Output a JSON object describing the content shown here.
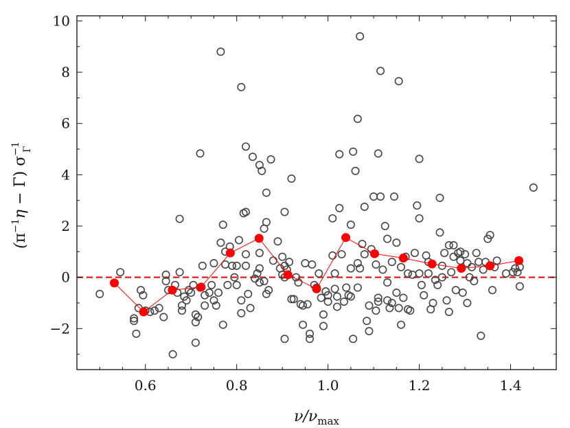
{
  "chart_data": {
    "type": "scatter",
    "title": "",
    "xlabel": "ν/ν_max",
    "ylabel": "(π⁻¹η − Γ) σ_Γ⁻¹",
    "xlim": [
      0.45,
      1.5
    ],
    "ylim": [
      -3.6,
      10.2
    ],
    "x_ticks": [
      0.6,
      0.8,
      1.0,
      1.2,
      1.4
    ],
    "x_tick_labels": [
      "0.6",
      "0.8",
      "1.0",
      "1.2",
      "1.4"
    ],
    "y_ticks": [
      -2,
      0,
      2,
      4,
      6,
      8,
      10
    ],
    "y_tick_labels": [
      "−2",
      "0",
      "2",
      "4",
      "6",
      "8",
      "10"
    ],
    "grid": false,
    "legend": "none",
    "reference_line": {
      "y": 0,
      "style": "dashed",
      "color": "#e41a1c"
    },
    "colors": {
      "points": "#444444",
      "binned": "#ff0000"
    },
    "series": [
      {
        "kind": "open-circles",
        "points": [
          [
            0.5,
            -0.65
          ],
          [
            0.545,
            0.2
          ],
          [
            0.575,
            -1.6
          ],
          [
            0.575,
            -1.7
          ],
          [
            0.58,
            -2.2
          ],
          [
            0.585,
            -1.2
          ],
          [
            0.59,
            -0.5
          ],
          [
            0.595,
            -0.7
          ],
          [
            0.6,
            -1.3
          ],
          [
            0.61,
            -1.35
          ],
          [
            0.62,
            -1.3
          ],
          [
            0.63,
            -1.2
          ],
          [
            0.64,
            -1.55
          ],
          [
            0.645,
            0.1
          ],
          [
            0.645,
            -0.15
          ],
          [
            0.65,
            -0.5
          ],
          [
            0.66,
            -3.0
          ],
          [
            0.665,
            -0.3
          ],
          [
            0.67,
            -0.6
          ],
          [
            0.675,
            0.2
          ],
          [
            0.675,
            2.28
          ],
          [
            0.68,
            -1.1
          ],
          [
            0.68,
            -1.3
          ],
          [
            0.685,
            -0.75
          ],
          [
            0.69,
            -0.9
          ],
          [
            0.695,
            -0.5
          ],
          [
            0.7,
            -0.6
          ],
          [
            0.705,
            -0.3
          ],
          [
            0.71,
            -1.45
          ],
          [
            0.71,
            -1.75
          ],
          [
            0.71,
            -2.55
          ],
          [
            0.715,
            -1.55
          ],
          [
            0.72,
            4.83
          ],
          [
            0.72,
            -0.4
          ],
          [
            0.725,
            0.45
          ],
          [
            0.73,
            -0.7
          ],
          [
            0.73,
            -1.1
          ],
          [
            0.74,
            -0.6
          ],
          [
            0.745,
            -0.3
          ],
          [
            0.75,
            0.55
          ],
          [
            0.75,
            -0.9
          ],
          [
            0.755,
            -1.1
          ],
          [
            0.76,
            -0.6
          ],
          [
            0.765,
            8.8
          ],
          [
            0.765,
            1.35
          ],
          [
            0.77,
            2.05
          ],
          [
            0.77,
            -1.85
          ],
          [
            0.775,
            1.0
          ],
          [
            0.775,
            0.5
          ],
          [
            0.78,
            -0.3
          ],
          [
            0.785,
            1.2
          ],
          [
            0.79,
            0.45
          ],
          [
            0.795,
            0.0
          ],
          [
            0.8,
            -0.3
          ],
          [
            0.8,
            0.45
          ],
          [
            0.805,
            1.45
          ],
          [
            0.81,
            7.42
          ],
          [
            0.81,
            -0.9
          ],
          [
            0.81,
            -1.4
          ],
          [
            0.815,
            2.5
          ],
          [
            0.82,
            5.1
          ],
          [
            0.82,
            2.55
          ],
          [
            0.82,
            0.9
          ],
          [
            0.82,
            0.45
          ],
          [
            0.825,
            -0.65
          ],
          [
            0.83,
            -1.2
          ],
          [
            0.835,
            4.7
          ],
          [
            0.84,
            -0.05
          ],
          [
            0.845,
            0.15
          ],
          [
            0.85,
            4.38
          ],
          [
            0.85,
            0.95
          ],
          [
            0.85,
            0.35
          ],
          [
            0.85,
            -0.2
          ],
          [
            0.855,
            4.15
          ],
          [
            0.86,
            1.9
          ],
          [
            0.86,
            -0.15
          ],
          [
            0.865,
            3.3
          ],
          [
            0.865,
            2.15
          ],
          [
            0.865,
            -0.65
          ],
          [
            0.87,
            -0.5
          ],
          [
            0.875,
            4.6
          ],
          [
            0.88,
            0.65
          ],
          [
            0.89,
            1.4
          ],
          [
            0.895,
            0.35
          ],
          [
            0.9,
            0.8
          ],
          [
            0.9,
            0.1
          ],
          [
            0.905,
            2.55
          ],
          [
            0.905,
            0.45
          ],
          [
            0.905,
            0.0
          ],
          [
            0.905,
            -2.4
          ],
          [
            0.91,
            0.3
          ],
          [
            0.915,
            0.6
          ],
          [
            0.92,
            3.85
          ],
          [
            0.92,
            -0.85
          ],
          [
            0.925,
            -0.85
          ],
          [
            0.93,
            0.0
          ],
          [
            0.935,
            -0.2
          ],
          [
            0.94,
            -1.05
          ],
          [
            0.945,
            -1.1
          ],
          [
            0.945,
            -1.85
          ],
          [
            0.95,
            0.55
          ],
          [
            0.955,
            -1.05
          ],
          [
            0.96,
            -2.2
          ],
          [
            0.96,
            -2.4
          ],
          [
            0.965,
            0.5
          ],
          [
            0.97,
            -0.3
          ],
          [
            0.975,
            -0.4
          ],
          [
            0.98,
            0.15
          ],
          [
            0.985,
            -0.8
          ],
          [
            0.99,
            -1.45
          ],
          [
            0.99,
            -1.9
          ],
          [
            0.995,
            -0.55
          ],
          [
            1.0,
            -0.7
          ],
          [
            1.0,
            -0.95
          ],
          [
            1.01,
            2.3
          ],
          [
            1.01,
            0.85
          ],
          [
            1.015,
            0.15
          ],
          [
            1.015,
            -0.45
          ],
          [
            1.02,
            -0.75
          ],
          [
            1.02,
            -1.15
          ],
          [
            1.025,
            2.7
          ],
          [
            1.025,
            4.8
          ],
          [
            1.03,
            0.9
          ],
          [
            1.035,
            -0.95
          ],
          [
            1.04,
            -0.4
          ],
          [
            1.045,
            -0.7
          ],
          [
            1.05,
            2.05
          ],
          [
            1.05,
            0.35
          ],
          [
            1.05,
            -0.75
          ],
          [
            1.055,
            4.9
          ],
          [
            1.055,
            -2.4
          ],
          [
            1.06,
            4.15
          ],
          [
            1.065,
            6.18
          ],
          [
            1.065,
            0.55
          ],
          [
            1.065,
            -0.4
          ],
          [
            1.07,
            9.4
          ],
          [
            1.07,
            0.35
          ],
          [
            1.075,
            1.3
          ],
          [
            1.08,
            2.75
          ],
          [
            1.08,
            0.9
          ],
          [
            1.085,
            -1.7
          ],
          [
            1.09,
            -2.1
          ],
          [
            1.09,
            -1.1
          ],
          [
            1.095,
            1.1
          ],
          [
            1.1,
            3.15
          ],
          [
            1.105,
            0.5
          ],
          [
            1.105,
            -1.3
          ],
          [
            1.11,
            4.83
          ],
          [
            1.11,
            -0.8
          ],
          [
            1.11,
            -0.95
          ],
          [
            1.115,
            8.05
          ],
          [
            1.115,
            3.15
          ],
          [
            1.12,
            0.3
          ],
          [
            1.125,
            2.0
          ],
          [
            1.13,
            1.5
          ],
          [
            1.13,
            -0.2
          ],
          [
            1.13,
            -0.9
          ],
          [
            1.135,
            -1.2
          ],
          [
            1.14,
            0.6
          ],
          [
            1.14,
            -1.0
          ],
          [
            1.145,
            3.15
          ],
          [
            1.15,
            1.35
          ],
          [
            1.15,
            -0.6
          ],
          [
            1.155,
            7.65
          ],
          [
            1.155,
            -1.2
          ],
          [
            1.16,
            0.4
          ],
          [
            1.16,
            -1.85
          ],
          [
            1.165,
            -0.8
          ],
          [
            1.17,
            0.8
          ],
          [
            1.175,
            0.15
          ],
          [
            1.175,
            -1.25
          ],
          [
            1.18,
            -1.3
          ],
          [
            1.185,
            0.1
          ],
          [
            1.19,
            0.95
          ],
          [
            1.195,
            2.8
          ],
          [
            1.2,
            4.62
          ],
          [
            1.2,
            2.3
          ],
          [
            1.2,
            0.15
          ],
          [
            1.205,
            -0.3
          ],
          [
            1.21,
            -0.7
          ],
          [
            1.215,
            0.85
          ],
          [
            1.22,
            0.6
          ],
          [
            1.22,
            0.15
          ],
          [
            1.225,
            -1.25
          ],
          [
            1.23,
            -1.0
          ],
          [
            1.235,
            -0.1
          ],
          [
            1.24,
            -0.3
          ],
          [
            1.245,
            1.75
          ],
          [
            1.245,
            3.1
          ],
          [
            1.25,
            0.45
          ],
          [
            1.25,
            0.0
          ],
          [
            1.255,
            0.95
          ],
          [
            1.26,
            -0.9
          ],
          [
            1.265,
            1.25
          ],
          [
            1.265,
            -1.35
          ],
          [
            1.27,
            0.2
          ],
          [
            1.275,
            1.25
          ],
          [
            1.275,
            0.8
          ],
          [
            1.28,
            -0.5
          ],
          [
            1.285,
            0.95
          ],
          [
            1.29,
            0.65
          ],
          [
            1.29,
            1.0
          ],
          [
            1.295,
            -0.6
          ],
          [
            1.3,
            0.9
          ],
          [
            1.305,
            0.55
          ],
          [
            1.305,
            -1.0
          ],
          [
            1.31,
            0.0
          ],
          [
            1.315,
            0.4
          ],
          [
            1.32,
            -0.15
          ],
          [
            1.325,
            0.95
          ],
          [
            1.33,
            0.6
          ],
          [
            1.335,
            -2.28
          ],
          [
            1.34,
            0.3
          ],
          [
            1.345,
            0.6
          ],
          [
            1.35,
            1.5
          ],
          [
            1.355,
            1.65
          ],
          [
            1.36,
            -0.5
          ],
          [
            1.365,
            0.4
          ],
          [
            1.37,
            0.65
          ],
          [
            1.39,
            0.15
          ],
          [
            1.405,
            0.2
          ],
          [
            1.41,
            0.35
          ],
          [
            1.415,
            0.2
          ],
          [
            1.42,
            0.4
          ],
          [
            1.42,
            -0.35
          ],
          [
            1.45,
            3.5
          ]
        ]
      },
      {
        "kind": "binned-mean",
        "x": [
          0.532,
          0.596,
          0.659,
          0.722,
          0.786,
          0.849,
          0.912,
          0.975,
          1.039,
          1.102,
          1.165,
          1.228,
          1.292,
          1.355,
          1.418
        ],
        "y": [
          -0.22,
          -1.35,
          -0.5,
          -0.38,
          0.95,
          1.52,
          0.1,
          -0.45,
          1.55,
          0.92,
          0.75,
          0.52,
          0.35,
          0.45,
          0.65
        ]
      }
    ]
  }
}
